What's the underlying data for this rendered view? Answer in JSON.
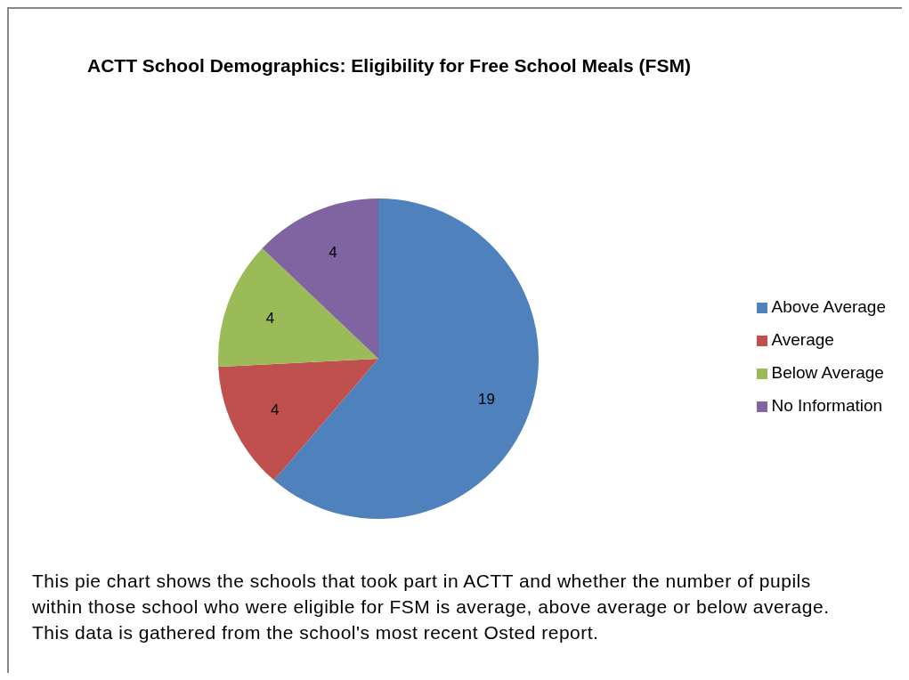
{
  "chart_data": {
    "type": "pie",
    "title": "ACTT School Demographics: Eligibility for Free School Meals (FSM)",
    "categories": [
      "Above Average",
      "Average",
      "Below Average",
      "No Information"
    ],
    "values": [
      19,
      4,
      4,
      4
    ],
    "colors": [
      "#4f81bd",
      "#c0504d",
      "#9bbb59",
      "#8064a2"
    ],
    "data_labels": true,
    "legend": "right",
    "annotations": [
      "This pie chart shows the schools that took part in ACTT and whether  the number of pupils within those school who were eligible for FSM is average, above average or below average.  This data is gathered from the school's most recent Osted report."
    ]
  }
}
